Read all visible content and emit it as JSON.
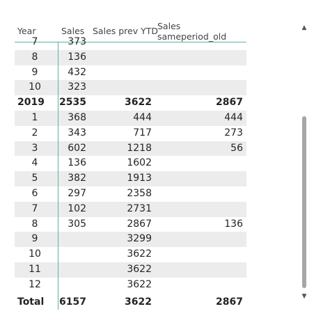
{
  "columns": {
    "year": "Year",
    "sales": "Sales",
    "sales_prev_ytd": "Sales prev YTD",
    "sales_sameperiod_old": "Sales sameperiod_old"
  },
  "rows": [
    {
      "year": "7",
      "sales": "373",
      "ytd": "",
      "same": "",
      "type": "detail"
    },
    {
      "year": "8",
      "sales": "136",
      "ytd": "",
      "same": "",
      "type": "detail"
    },
    {
      "year": "9",
      "sales": "432",
      "ytd": "",
      "same": "",
      "type": "detail"
    },
    {
      "year": "10",
      "sales": "323",
      "ytd": "",
      "same": "",
      "type": "detail"
    },
    {
      "year": "2019",
      "sales": "2535",
      "ytd": "3622",
      "same": "2867",
      "type": "subtotal"
    },
    {
      "year": "1",
      "sales": "368",
      "ytd": "444",
      "same": "444",
      "type": "detail"
    },
    {
      "year": "2",
      "sales": "343",
      "ytd": "717",
      "same": "273",
      "type": "detail"
    },
    {
      "year": "3",
      "sales": "602",
      "ytd": "1218",
      "same": "56",
      "type": "detail"
    },
    {
      "year": "4",
      "sales": "136",
      "ytd": "1602",
      "same": "",
      "type": "detail"
    },
    {
      "year": "5",
      "sales": "382",
      "ytd": "1913",
      "same": "",
      "type": "detail"
    },
    {
      "year": "6",
      "sales": "297",
      "ytd": "2358",
      "same": "",
      "type": "detail"
    },
    {
      "year": "7",
      "sales": "102",
      "ytd": "2731",
      "same": "",
      "type": "detail"
    },
    {
      "year": "8",
      "sales": "305",
      "ytd": "2867",
      "same": "136",
      "type": "detail"
    },
    {
      "year": "9",
      "sales": "",
      "ytd": "3299",
      "same": "",
      "type": "detail"
    },
    {
      "year": "10",
      "sales": "",
      "ytd": "3622",
      "same": "",
      "type": "detail"
    },
    {
      "year": "11",
      "sales": "",
      "ytd": "3622",
      "same": "",
      "type": "detail"
    },
    {
      "year": "12",
      "sales": "",
      "ytd": "3622",
      "same": "",
      "type": "detail"
    }
  ],
  "total": {
    "label": "Total",
    "sales": "6157",
    "ytd": "3622",
    "same": "2867"
  },
  "scrollbar": {
    "up_icon": "▲",
    "down_icon": "▼"
  }
}
